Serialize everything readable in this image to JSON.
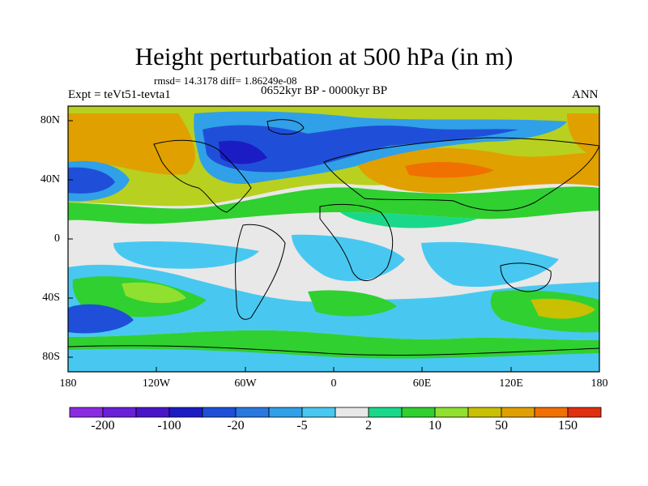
{
  "title": "Height perturbation at 500 hPa (in m)",
  "stats": "rmsd= 14.3178 diff= 1.86249e-08",
  "experiment": "Expt = teVt51-tevta1",
  "period": "0652kyr BP - 0000kyr BP",
  "season": "ANN",
  "lat_labels": [
    "80N",
    "40N",
    "0",
    "40S",
    "80S"
  ],
  "lon_labels": [
    "180",
    "120W",
    "60W",
    "0",
    "60E",
    "120E",
    "180"
  ],
  "colorbar": {
    "labels": [
      "-200",
      "-100",
      "-20",
      "-5",
      "2",
      "10",
      "50",
      "150"
    ],
    "colors": [
      "#8a2be2",
      "#6a1fd8",
      "#4a14c8",
      "#1c1cc4",
      "#1f4fd8",
      "#2878e0",
      "#30a0e8",
      "#48c8f0",
      "#e8e8e8",
      "#1ad88a",
      "#30d030",
      "#90e030",
      "#c8c000",
      "#e0a000",
      "#f07000",
      "#e03010"
    ]
  },
  "palette": {
    "background": "#e8e8e8",
    "coast": "#000000"
  }
}
